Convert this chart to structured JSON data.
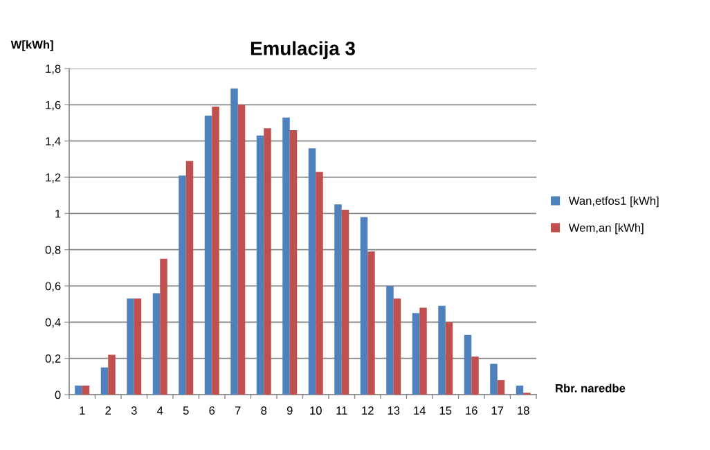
{
  "chart_data": {
    "type": "bar",
    "title": "Emulacija 3",
    "ylabel": "W[kWh]",
    "xlabel": "Rbr. naredbe",
    "categories": [
      "1",
      "2",
      "3",
      "4",
      "5",
      "6",
      "7",
      "8",
      "9",
      "10",
      "11",
      "12",
      "13",
      "14",
      "15",
      "16",
      "17",
      "18"
    ],
    "series": [
      {
        "name": "Wan,etfos1 [kWh]",
        "color": "#4f81bd",
        "values": [
          0.05,
          0.15,
          0.53,
          0.56,
          1.21,
          1.54,
          1.69,
          1.43,
          1.53,
          1.36,
          1.05,
          0.98,
          0.6,
          0.45,
          0.49,
          0.33,
          0.17,
          0.05
        ]
      },
      {
        "name": "Wem,an [kWh]",
        "color": "#c0504d",
        "values": [
          0.05,
          0.22,
          0.53,
          0.75,
          1.29,
          1.59,
          1.6,
          1.47,
          1.46,
          1.23,
          1.02,
          0.79,
          0.53,
          0.48,
          0.4,
          0.21,
          0.08,
          0.01
        ]
      }
    ],
    "ylim": [
      0,
      1.8
    ],
    "yticks": [
      0,
      {
        "value": 0.2,
        "label": "0,2"
      },
      {
        "value": 0.4,
        "label": "0,4"
      },
      {
        "value": 0.6,
        "label": "0,6"
      },
      {
        "value": 0.8,
        "label": "0,8"
      },
      1,
      {
        "value": 1.2,
        "label": "1,2"
      },
      {
        "value": 1.4,
        "label": "1,4"
      },
      {
        "value": 1.6,
        "label": "1,6"
      },
      {
        "value": 1.8,
        "label": "1,8"
      }
    ],
    "grid": "y",
    "legend": "right"
  }
}
